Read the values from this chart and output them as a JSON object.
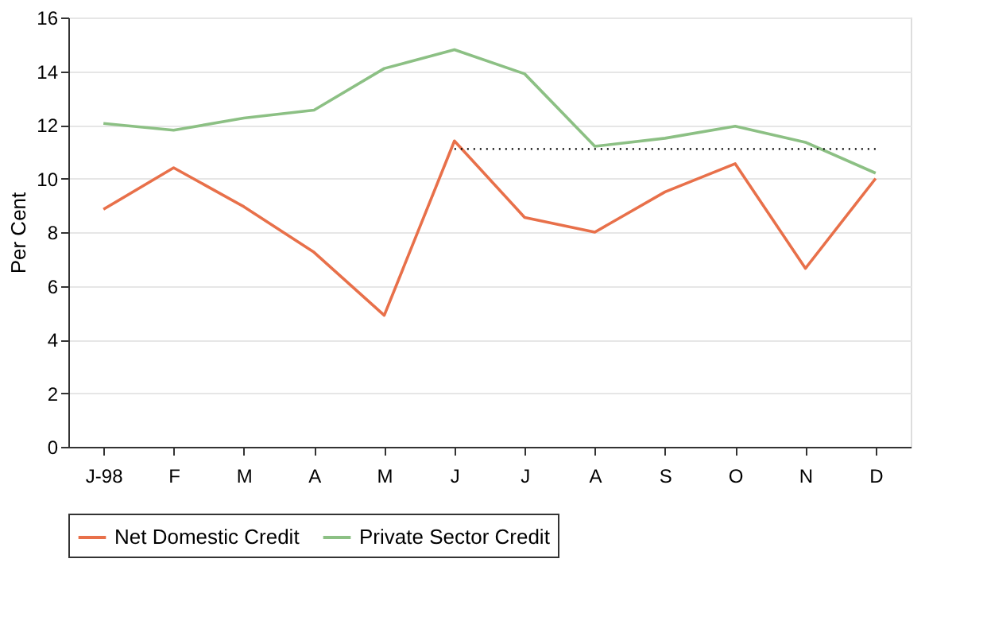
{
  "chart_data": {
    "type": "line",
    "ylabel": "Per Cent",
    "categories": [
      "J-98",
      "F",
      "M",
      "A",
      "M",
      "J",
      "J",
      "A",
      "S",
      "O",
      "N",
      "D"
    ],
    "series": [
      {
        "name": "Net Domestic Credit",
        "color": "#e8704a",
        "values": [
          8.85,
          10.4,
          8.95,
          7.25,
          4.9,
          11.4,
          8.55,
          8.0,
          9.5,
          10.55,
          6.65,
          10.0
        ]
      },
      {
        "name": "Private Sector Credit",
        "color": "#8cc084",
        "values": [
          12.05,
          11.8,
          12.25,
          12.55,
          14.1,
          14.8,
          13.9,
          11.2,
          11.5,
          11.95,
          11.35,
          10.2
        ]
      },
      {
        "color": "#000000",
        "line_style": "dotted",
        "values": [
          null,
          null,
          null,
          null,
          null,
          11.1,
          11.1,
          11.1,
          11.1,
          11.1,
          11.1,
          11.1
        ]
      }
    ],
    "ylim": [
      0,
      16
    ],
    "yticks": [
      0,
      2,
      4,
      6,
      8,
      10,
      12,
      14,
      16
    ],
    "grid": "y",
    "legend": "bottom",
    "line_style": "solid"
  }
}
